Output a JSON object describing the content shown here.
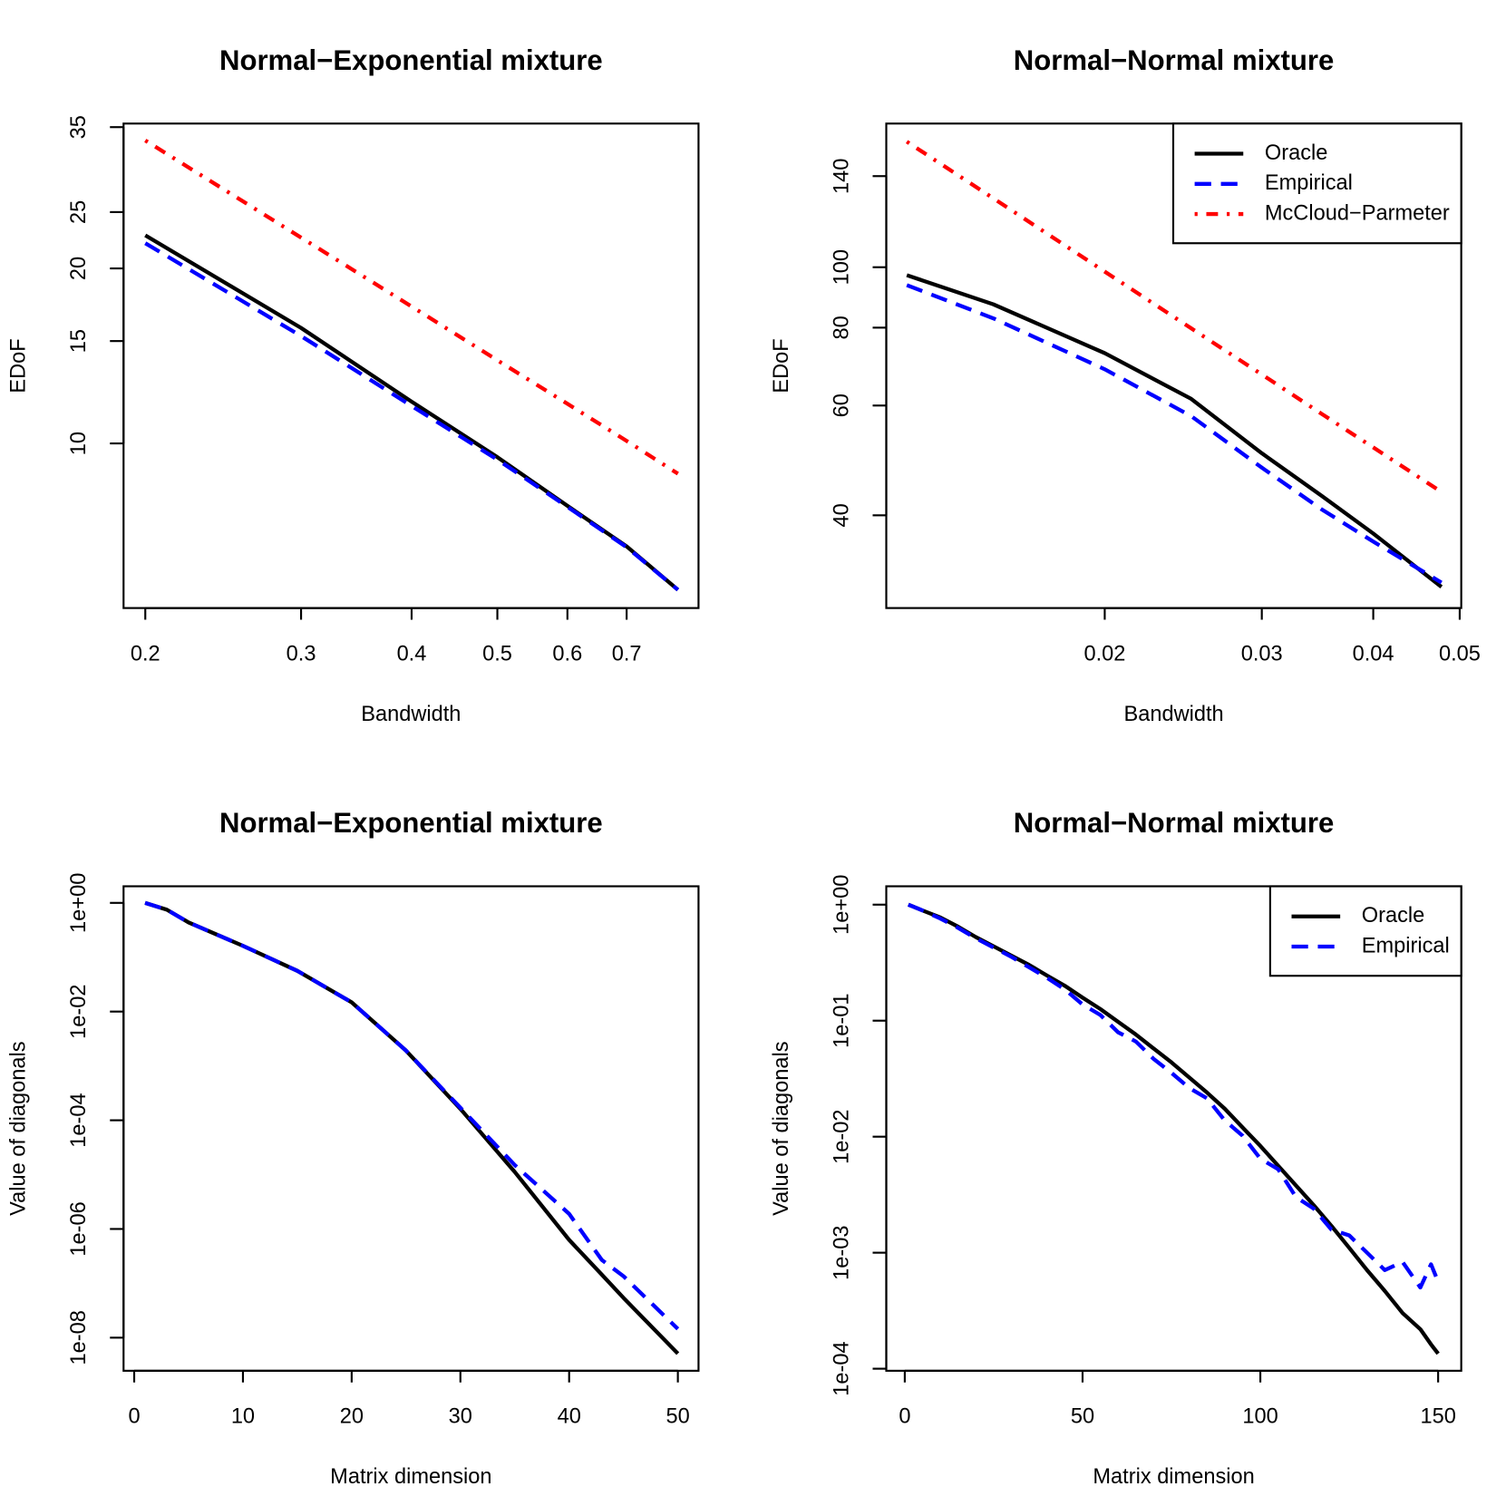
{
  "chart_data": [
    {
      "type": "line",
      "title": "Normal−Exponential mixture",
      "x_label": "Bandwidth",
      "y_label": "EDoF",
      "xlog": true,
      "ylog": true,
      "x": [
        0.2,
        0.3,
        0.4,
        0.5,
        0.6,
        0.7,
        0.8
      ],
      "series": [
        {
          "name": "Oracle",
          "color": "#000000",
          "linestyle": "solid",
          "values": [
            22.8,
            15.8,
            11.8,
            9.47,
            7.81,
            6.65,
            5.6
          ]
        },
        {
          "name": "Empirical",
          "color": "#0000ff",
          "linestyle": "dashed",
          "values": [
            22.1,
            15.3,
            11.6,
            9.38,
            7.78,
            6.63,
            5.6
          ]
        },
        {
          "name": "McCloud−Parmeter",
          "color": "#ff0000",
          "linestyle": "dotdash",
          "values": [
            33.2,
            22.6,
            17.2,
            13.9,
            11.7,
            10.1,
            8.87
          ]
        }
      ],
      "xlim": [
        0.189,
        0.844
      ],
      "ylim": [
        5.21,
        35.5
      ],
      "xticks": [
        0.2,
        0.3,
        0.4,
        0.5,
        0.6,
        0.7
      ],
      "yticks": [
        10,
        15,
        20,
        25,
        35
      ]
    },
    {
      "type": "line",
      "title": "Normal−Normal mixture",
      "x_label": "Bandwidth",
      "y_label": "EDoF",
      "xlog": true,
      "ylog": true,
      "legend": "topright",
      "x": [
        0.012,
        0.015,
        0.02,
        0.025,
        0.03,
        0.035,
        0.04,
        0.0477
      ],
      "series": [
        {
          "name": "Oracle",
          "color": "#000000",
          "linestyle": "solid",
          "values": [
            97.1,
            87.2,
            72.8,
            61.5,
            50.3,
            43.0,
            37.4,
            30.7
          ]
        },
        {
          "name": "Empirical",
          "color": "#0000ff",
          "linestyle": "dashed",
          "values": [
            93.6,
            82.8,
            68.6,
            57.7,
            47.7,
            40.9,
            36.3,
            31.2
          ]
        },
        {
          "name": "McCloud−Parmeter",
          "color": "#ff0000",
          "linestyle": "dotdash",
          "values": [
            159,
            129,
            98.4,
            79.8,
            67.3,
            58.2,
            51.4,
            43.6
          ]
        }
      ],
      "xlim": [
        0.01138,
        0.0502
      ],
      "ylim": [
        28.4,
        170
      ],
      "xticks": [
        0.02,
        0.03,
        0.04,
        0.05
      ],
      "yticks": [
        40,
        60,
        80,
        100,
        140
      ]
    },
    {
      "type": "line",
      "title": "Normal−Exponential mixture",
      "x_label": "Matrix dimension",
      "y_label": "Value of diagonals",
      "xlog": false,
      "ylog": true,
      "x": [
        1,
        3,
        5,
        10,
        15,
        20,
        25,
        30,
        35,
        40,
        43,
        45,
        50
      ],
      "series": [
        {
          "name": "Oracle",
          "color": "#000000",
          "linestyle": "solid",
          "values": [
            1,
            0.75,
            0.437,
            0.162,
            0.0562,
            0.0148,
            0.00191,
            0.000162,
            1.12e-05,
            6.3e-07,
            1.45e-07,
            5.4e-08,
            5.1e-09
          ]
        },
        {
          "name": "Empirical",
          "color": "#0000ff",
          "linestyle": "dashed",
          "values": [
            1,
            0.75,
            0.437,
            0.162,
            0.0562,
            0.0148,
            0.00191,
            0.00017,
            1.5e-05,
            1.9e-06,
            2.7e-07,
            1.35e-07,
            1.45e-08
          ]
        }
      ],
      "xlim": [
        -0.98,
        51.9
      ],
      "ylim": [
        2.46e-09,
        2.02
      ],
      "xticks": [
        0,
        10,
        20,
        30,
        40,
        50
      ],
      "yticks": [
        {
          "value": 1,
          "label": "1e+00"
        },
        {
          "value": 0.01,
          "label": "1e-02"
        },
        {
          "value": 0.0001,
          "label": "1e-04"
        },
        {
          "value": 1e-06,
          "label": "1e-06"
        },
        {
          "value": 1e-08,
          "label": "1e-08"
        }
      ]
    },
    {
      "type": "line",
      "title": "Normal−Normal mixture",
      "x_label": "Matrix dimension",
      "y_label": "Value of diagonals",
      "xlog": false,
      "ylog": true,
      "legend": "topright",
      "x": [
        1,
        5,
        10,
        15,
        20,
        25,
        30,
        35,
        40,
        45,
        50,
        55,
        60,
        65,
        70,
        75,
        80,
        85,
        90,
        95,
        100,
        105,
        110,
        115,
        120,
        125,
        130,
        135,
        140,
        145,
        148,
        150
      ],
      "series": [
        {
          "name": "Oracle",
          "color": "#000000",
          "linestyle": "solid",
          "values": [
            1,
            0.891,
            0.776,
            0.646,
            0.525,
            0.437,
            0.363,
            0.302,
            0.245,
            0.2,
            0.158,
            0.126,
            0.0977,
            0.0759,
            0.0575,
            0.0437,
            0.0324,
            0.024,
            0.0174,
            0.012,
            0.00832,
            0.00562,
            0.0038,
            0.00257,
            0.0017,
            0.0011,
            0.000708,
            0.000468,
            0.000302,
            0.000219,
            0.000162,
            0.000135
          ]
        },
        {
          "name": "Empirical",
          "color": "#0000ff",
          "linestyle": "dashed",
          "values": [
            1,
            0.891,
            0.759,
            0.631,
            0.513,
            0.427,
            0.355,
            0.288,
            0.234,
            0.186,
            0.138,
            0.112,
            0.0794,
            0.0661,
            0.0468,
            0.0355,
            0.0263,
            0.0214,
            0.0138,
            0.0102,
            0.00646,
            0.00525,
            0.00302,
            0.0024,
            0.00158,
            0.00141,
            0.001,
            0.000708,
            0.000832,
            0.000501,
            0.000794,
            0.000562
          ]
        }
      ],
      "xlim": [
        -5.2,
        156.5
      ],
      "ylim": [
        9.6e-05,
        1.44
      ],
      "xticks": [
        0,
        50,
        100,
        150
      ],
      "yticks": [
        {
          "value": 1,
          "label": "1e+00"
        },
        {
          "value": 0.1,
          "label": "1e-01"
        },
        {
          "value": 0.01,
          "label": "1e-02"
        },
        {
          "value": 0.001,
          "label": "1e-03"
        },
        {
          "value": 0.0001,
          "label": "1e-04"
        }
      ]
    }
  ]
}
